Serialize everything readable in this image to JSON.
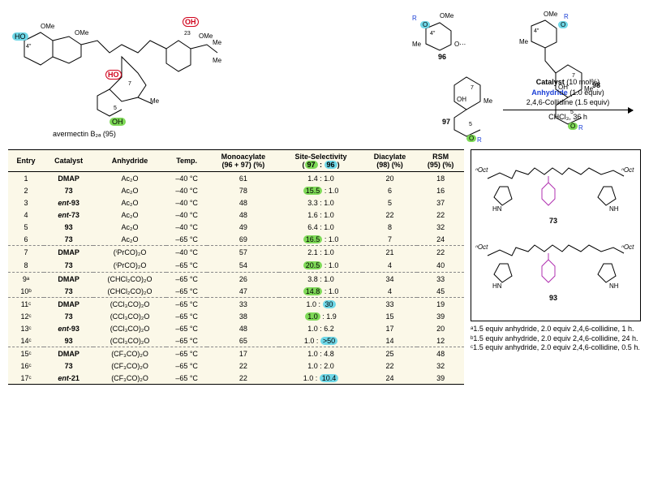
{
  "reactionConditions": {
    "line1_a": "Catalyst",
    "line1_b": " (10 mol%)",
    "line2_a": "Anhydride",
    "line2_b": " (1.0 equiv)",
    "line3": "2,4,6-Collidine (1.5 equiv)",
    "line4": "CHCl₃, 36 h"
  },
  "labels": {
    "substrate": "avermectin B₂ₐ (95)",
    "prod96": "96",
    "prod97": "97",
    "prod98": "98",
    "cat73": "73",
    "cat93": "93"
  },
  "headers": [
    "Entry",
    "Catalyst",
    "Anhydride",
    "Temp.",
    "Monoacylate (96 + 97) (%)",
    "Site-Selectivity (97 : 96)",
    "Diacylate (98) (%)",
    "RSM (95) (%)"
  ],
  "rows": [
    {
      "e": "1",
      "cat": "DMAP",
      "anh": "Ac₂O",
      "t": "–40 °C",
      "mono": "61",
      "ss_a": "1.4",
      "ss_b": "1.0",
      "hl": "",
      "di": "20",
      "rsm": "18",
      "dash": false
    },
    {
      "e": "2",
      "cat": "73",
      "anh": "Ac₂O",
      "t": "–40 °C",
      "mono": "78",
      "ss_a": "15.5",
      "ss_b": "1.0",
      "hl": "a",
      "di": "6",
      "rsm": "16",
      "dash": false
    },
    {
      "e": "3",
      "cat": "ent-93",
      "anh": "Ac₂O",
      "t": "–40 °C",
      "mono": "48",
      "ss_a": "3.3",
      "ss_b": "1.0",
      "hl": "",
      "di": "5",
      "rsm": "37",
      "dash": false
    },
    {
      "e": "4",
      "cat": "ent-73",
      "anh": "Ac₂O",
      "t": "–40 °C",
      "mono": "48",
      "ss_a": "1.6",
      "ss_b": "1.0",
      "hl": "",
      "di": "22",
      "rsm": "22",
      "dash": false
    },
    {
      "e": "5",
      "cat": "93",
      "anh": "Ac₂O",
      "t": "–40 °C",
      "mono": "49",
      "ss_a": "6.4",
      "ss_b": "1.0",
      "hl": "",
      "di": "8",
      "rsm": "32",
      "dash": false
    },
    {
      "e": "6",
      "cat": "73",
      "anh": "Ac₂O",
      "t": "–65 °C",
      "mono": "69",
      "ss_a": "16.5",
      "ss_b": "1.0",
      "hl": "a",
      "di": "7",
      "rsm": "24",
      "dash": false
    },
    {
      "e": "7",
      "cat": "DMAP",
      "anh": "(ⁱPrCO)₂O",
      "t": "–40 °C",
      "mono": "57",
      "ss_a": "2.1",
      "ss_b": "1.0",
      "hl": "",
      "di": "21",
      "rsm": "22",
      "dash": true
    },
    {
      "e": "8",
      "cat": "73",
      "anh": "(ⁱPrCO)₂O",
      "t": "–65 °C",
      "mono": "54",
      "ss_a": "20.5",
      "ss_b": "1.0",
      "hl": "a",
      "di": "4",
      "rsm": "40",
      "dash": false
    },
    {
      "e": "9ᵃ",
      "cat": "DMAP",
      "anh": "(CHCl₂CO)₂O",
      "t": "–65 °C",
      "mono": "26",
      "ss_a": "3.8",
      "ss_b": "1.0",
      "hl": "",
      "di": "34",
      "rsm": "33",
      "dash": true
    },
    {
      "e": "10ᵇ",
      "cat": "73",
      "anh": "(CHCl₂CO)₂O",
      "t": "–65 °C",
      "mono": "47",
      "ss_a": "14.8",
      "ss_b": "1.0",
      "hl": "a",
      "di": "4",
      "rsm": "45",
      "dash": false
    },
    {
      "e": "11ᶜ",
      "cat": "DMAP",
      "anh": "(CCl₃CO)₂O",
      "t": "–65 °C",
      "mono": "33",
      "ss_a": "1.0",
      "ss_b": "30",
      "hl": "b",
      "di": "33",
      "rsm": "19",
      "dash": true
    },
    {
      "e": "12ᶜ",
      "cat": "73",
      "anh": "(CCl₃CO)₂O",
      "t": "–65 °C",
      "mono": "38",
      "ss_a": "1.0",
      "ss_b": "1.9",
      "hl": "a2",
      "di": "15",
      "rsm": "39",
      "dash": false
    },
    {
      "e": "13ᶜ",
      "cat": "ent-93",
      "anh": "(CCl₃CO)₂O",
      "t": "–65 °C",
      "mono": "48",
      "ss_a": "1.0",
      "ss_b": "6.2",
      "hl": "",
      "di": "17",
      "rsm": "20",
      "dash": false
    },
    {
      "e": "14ᶜ",
      "cat": "93",
      "anh": "(CCl₃CO)₂O",
      "t": "–65 °C",
      "mono": "65",
      "ss_a": "1.0",
      "ss_b": ">50",
      "hl": "b",
      "di": "14",
      "rsm": "12",
      "dash": false
    },
    {
      "e": "15ᶜ",
      "cat": "DMAP",
      "anh": "(CF₃CO)₂O",
      "t": "–65 °C",
      "mono": "17",
      "ss_a": "1.0",
      "ss_b": "4.8",
      "hl": "",
      "di": "25",
      "rsm": "48",
      "dash": true
    },
    {
      "e": "16ᶜ",
      "cat": "73",
      "anh": "(CF₃CO)₂O",
      "t": "–65 °C",
      "mono": "22",
      "ss_a": "1.0",
      "ss_b": "2.0",
      "hl": "",
      "di": "22",
      "rsm": "32",
      "dash": false
    },
    {
      "e": "17ᶜ",
      "cat": "ent-21",
      "anh": "(CF₃CO)₂O",
      "t": "–65 °C",
      "mono": "22",
      "ss_a": "1.0",
      "ss_b": "10.4",
      "hl": "b",
      "di": "24",
      "rsm": "39",
      "dash": false
    }
  ],
  "boldCats": [
    "DMAP",
    "73",
    "ent-93",
    "ent-73",
    "93",
    "ent-21"
  ],
  "footnotes": {
    "a": "ᵃ1.5 equiv anhydride, 2.0 equiv 2,4,6-collidine, 1 h.",
    "b": "ᵇ1.5 equiv anhydride, 2.0 equiv 2,4,6-collidine, 24 h.",
    "c": "ᶜ1.5 equiv anhydride, 2.0 equiv 2,4,6-collidine, 0.5 h."
  },
  "colors": {
    "green": "#7ed957",
    "cyan": "#6fd8e8",
    "red": "#d0021b",
    "tablebg": "#fbf8e8",
    "blue": "#1a3fd6",
    "magenta": "#b030b0"
  }
}
